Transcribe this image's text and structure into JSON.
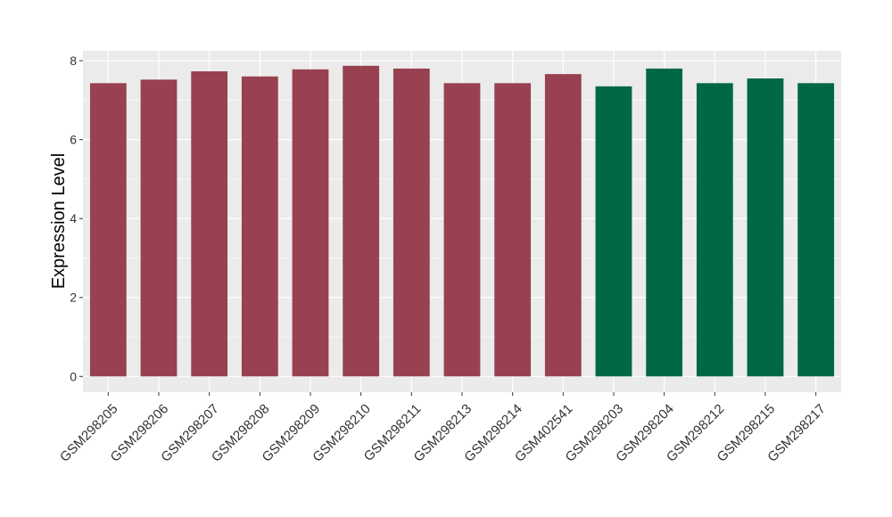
{
  "chart_data": {
    "type": "bar",
    "ylabel": "Expression Level",
    "xlabel": "",
    "ylim": [
      -0.4,
      8.25
    ],
    "yticks": [
      0,
      2,
      4,
      6,
      8
    ],
    "grid": true,
    "categories": [
      "GSM298205",
      "GSM298206",
      "GSM298207",
      "GSM298208",
      "GSM298209",
      "GSM298210",
      "GSM298211",
      "GSM298213",
      "GSM298214",
      "GSM402541",
      "GSM298203",
      "GSM298204",
      "GSM298212",
      "GSM298215",
      "GSM298217"
    ],
    "values": [
      7.43,
      7.52,
      7.73,
      7.6,
      7.78,
      7.87,
      7.8,
      7.43,
      7.43,
      7.66,
      7.35,
      7.8,
      7.43,
      7.55,
      7.43
    ],
    "bar_colors": [
      "#984150",
      "#984150",
      "#984150",
      "#984150",
      "#984150",
      "#984150",
      "#984150",
      "#984150",
      "#984150",
      "#984150",
      "#006845",
      "#006845",
      "#006845",
      "#006845",
      "#006845"
    ],
    "panel_background": "#ebebeb",
    "grid_color": "#ffffff"
  }
}
